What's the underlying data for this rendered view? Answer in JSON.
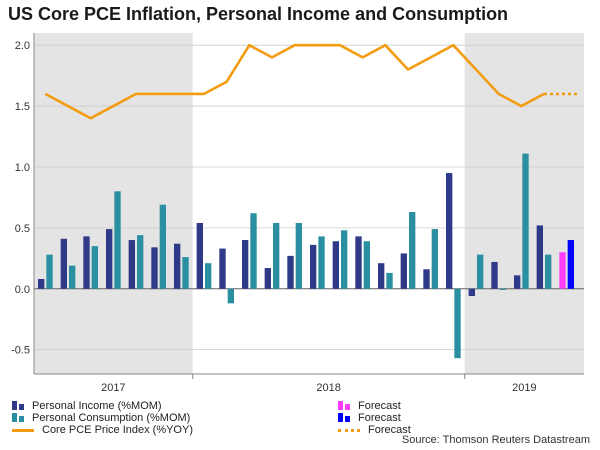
{
  "title": "US Core PCE Inflation, Personal Income and Consumption",
  "source": "Source: Thomson Reuters Datastream",
  "legend": {
    "income": "Personal Income (%MOM)",
    "consumption": "Personal Consumption (%MOM)",
    "pce": "Core PCE Price Index (%YOY)",
    "forecast_income": "Forecast",
    "forecast_consumption": "Forecast",
    "forecast_pce": "Forecast"
  },
  "colors": {
    "income": "#2e3a87",
    "consumption": "#2a8fa0",
    "pce": "#f39c12",
    "forecast_income": "#ff3dff",
    "forecast_consumption": "#0000ff",
    "shade": "#e4e4e4"
  },
  "chart_data": {
    "type": "bar",
    "title": "US Core PCE Inflation, Personal Income and Consumption",
    "ylim": [
      -0.7,
      2.1
    ],
    "yticks": [
      "-0.5",
      "0.0",
      "0.5",
      "1.0",
      "1.5",
      "2.0"
    ],
    "year_labels": [
      "2017",
      "2018",
      "2019"
    ],
    "shaded_years": [
      "2017",
      "2019"
    ],
    "months": 24,
    "series": [
      {
        "name": "Personal Income (%MOM)",
        "type": "bar",
        "values": [
          0.08,
          0.41,
          0.43,
          0.49,
          0.4,
          0.34,
          0.37,
          0.54,
          0.33,
          0.4,
          0.17,
          0.27,
          0.36,
          0.39,
          0.43,
          0.21,
          0.29,
          0.16,
          0.95,
          -0.06,
          0.22,
          0.11,
          0.52,
          null
        ]
      },
      {
        "name": "Personal Consumption (%MOM)",
        "type": "bar",
        "values": [
          0.28,
          0.19,
          0.35,
          0.8,
          0.44,
          0.69,
          0.26,
          0.21,
          -0.12,
          0.62,
          0.54,
          0.54,
          0.43,
          0.48,
          0.39,
          0.13,
          0.63,
          0.49,
          -0.57,
          0.28,
          -0.01,
          1.11,
          0.28,
          null
        ]
      },
      {
        "name": "Core PCE Price Index (%YOY)",
        "type": "line",
        "values": [
          1.6,
          1.5,
          1.4,
          1.5,
          1.6,
          1.6,
          1.6,
          1.6,
          1.7,
          2.0,
          1.9,
          2.0,
          2.0,
          2.0,
          1.9,
          2.0,
          1.8,
          1.9,
          2.0,
          1.8,
          1.6,
          1.5,
          1.6,
          null
        ]
      },
      {
        "name": "Forecast",
        "type": "bar",
        "values": [
          null,
          null,
          null,
          null,
          null,
          null,
          null,
          null,
          null,
          null,
          null,
          null,
          null,
          null,
          null,
          null,
          null,
          null,
          null,
          null,
          null,
          null,
          null,
          0.3
        ]
      },
      {
        "name": "Forecast",
        "type": "bar",
        "values": [
          null,
          null,
          null,
          null,
          null,
          null,
          null,
          null,
          null,
          null,
          null,
          null,
          null,
          null,
          null,
          null,
          null,
          null,
          null,
          null,
          null,
          null,
          null,
          0.4
        ]
      },
      {
        "name": "Forecast",
        "type": "line",
        "values": [
          null,
          null,
          null,
          null,
          null,
          null,
          null,
          null,
          null,
          null,
          null,
          null,
          null,
          null,
          null,
          null,
          null,
          null,
          null,
          null,
          null,
          null,
          1.6,
          1.6
        ]
      }
    ]
  }
}
